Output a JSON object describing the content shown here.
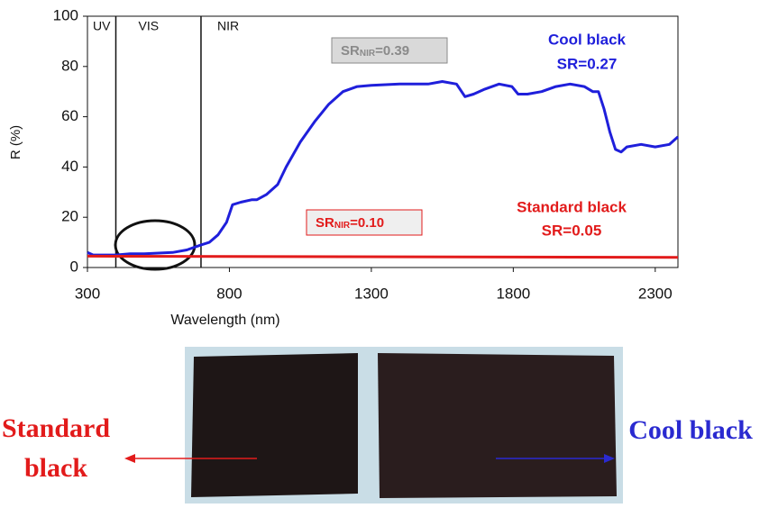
{
  "chart_data": {
    "type": "line",
    "xlabel": "Wavelength (nm)",
    "ylabel": "R (%)",
    "xlim": [
      300,
      2380
    ],
    "ylim": [
      0,
      100
    ],
    "xticks": [
      300,
      800,
      1300,
      1800,
      2300
    ],
    "yticks": [
      0,
      20,
      40,
      60,
      80,
      100
    ],
    "region_boundaries": [
      400,
      700
    ],
    "regions": [
      "UV",
      "VIS",
      "NIR"
    ],
    "series": [
      {
        "name": "Cool black",
        "color": "#1f1fdb",
        "x": [
          300,
          320,
          350,
          400,
          450,
          500,
          600,
          650,
          700,
          729,
          760,
          790,
          811,
          840,
          880,
          897,
          930,
          970,
          1000,
          1050,
          1100,
          1150,
          1200,
          1250,
          1300,
          1400,
          1500,
          1550,
          1600,
          1630,
          1660,
          1700,
          1750,
          1795,
          1817,
          1850,
          1900,
          1950,
          2000,
          2050,
          2080,
          2100,
          2120,
          2140,
          2160,
          2180,
          2200,
          2250,
          2300,
          2350,
          2380
        ],
        "values": [
          6,
          5,
          5,
          5,
          5.5,
          5.5,
          6,
          7,
          9,
          10,
          13,
          18,
          25,
          26,
          27,
          27,
          29,
          33,
          40,
          50,
          58,
          65,
          70,
          72,
          72.5,
          73,
          73,
          74,
          73,
          68,
          69,
          71,
          73,
          72,
          69,
          69,
          70,
          72,
          73,
          72,
          70,
          70,
          63,
          54,
          47,
          46,
          48,
          49,
          48,
          49,
          52
        ]
      },
      {
        "name": "Standard black",
        "color": "#e21b1b",
        "x": [
          300,
          2380
        ],
        "values": [
          4.5,
          4
        ]
      }
    ],
    "annotations": [
      {
        "main": "SR",
        "sub": "NIR",
        "rest": "=0.39",
        "color": "#8a8a8a"
      },
      {
        "main": "SR",
        "sub": "NIR",
        "rest": "=0.10",
        "color": "#e21b1b"
      }
    ],
    "series_labels": [
      {
        "name": "Cool black",
        "sr": "SR=0.27"
      },
      {
        "name": "Standard black",
        "sr": "SR=0.05"
      }
    ],
    "photo_labels": {
      "left": [
        "Standard",
        "black"
      ],
      "right": "Cool black"
    }
  }
}
